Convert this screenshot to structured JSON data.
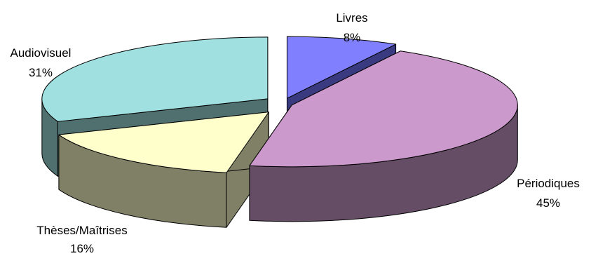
{
  "chart_data": {
    "type": "pie",
    "style": "3d-exploded",
    "title": "",
    "slices": [
      {
        "label": "Livres",
        "percent_label": "8%",
        "value": 8,
        "top_color": "#8080ff",
        "side_color": "#3a3a80"
      },
      {
        "label": "Périodiques",
        "percent_label": "45%",
        "value": 45,
        "top_color": "#cc99cc",
        "side_color": "#664d66"
      },
      {
        "label": "Thèses/Maîtrises",
        "percent_label": "16%",
        "value": 16,
        "top_color": "#ffffcc",
        "side_color": "#808066"
      },
      {
        "label": "Audiovisuel",
        "percent_label": "31%",
        "value": 31,
        "top_color": "#a0e0e0",
        "side_color": "#507070"
      }
    ],
    "legend": "none"
  }
}
